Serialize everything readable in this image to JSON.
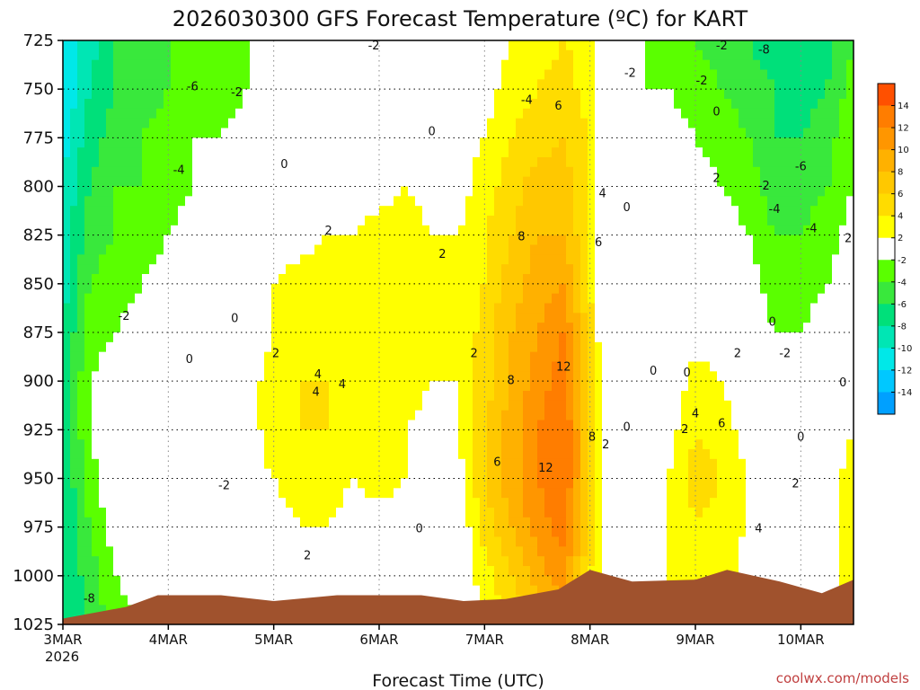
{
  "chart_data": {
    "type": "heatmap",
    "title": "2026030300 GFS Forecast Temperature (ºC) for KART",
    "xlabel": "Forecast Time (UTC)",
    "credit": "coolwx.com/models",
    "x_ticks": [
      "3MAR",
      "4MAR",
      "5MAR",
      "6MAR",
      "7MAR",
      "8MAR",
      "9MAR",
      "10MAR"
    ],
    "x_sub": "2026",
    "y_ticks": [
      725,
      750,
      775,
      800,
      825,
      850,
      875,
      900,
      925,
      950,
      975,
      1000,
      1025
    ],
    "y_axis": "pressure (hPa), inverted",
    "x_range_days": [
      0,
      7.5
    ],
    "y_range": [
      725,
      1025
    ],
    "grid": true,
    "colorbar": {
      "labels": [
        "14",
        "12",
        "10",
        "8",
        "6",
        "4",
        "2",
        "-2",
        "-4",
        "-6",
        "-8",
        "-10",
        "-12",
        "-14"
      ],
      "colors": [
        "#ff5000",
        "#ff7d00",
        "#ff9600",
        "#ffb100",
        "#ffc800",
        "#ffdc00",
        "#ffff00",
        "#ffffff",
        "#5aff00",
        "#39e83c",
        "#00e07a",
        "#00e6b4",
        "#00e8e8",
        "#00c8ff",
        "#00a0ff"
      ]
    },
    "terrain_color": "#a0522d",
    "columns": [
      {
        "x": 0.0,
        "levels": [
          -12,
          -12,
          -11,
          -10,
          -9,
          -9,
          -8,
          -8,
          -8,
          -8,
          -8,
          -8,
          -8
        ]
      },
      {
        "x": 0.25,
        "levels": [
          -9,
          -8,
          -7,
          -6,
          -5,
          -4,
          -3,
          -2,
          -2,
          -3,
          -4,
          -5,
          -6
        ]
      },
      {
        "x": 0.5,
        "levels": [
          -6,
          -6,
          -5,
          -4,
          -4,
          -3,
          -2,
          -1,
          0,
          0,
          -1,
          -2,
          -3
        ]
      },
      {
        "x": 0.75,
        "levels": [
          -5,
          -5,
          -4,
          -4,
          -3,
          -2,
          -1,
          0,
          1,
          1,
          0,
          -1,
          -2
        ]
      },
      {
        "x": 1.0,
        "levels": [
          -4,
          -4,
          -3,
          -3,
          -2,
          -1,
          0,
          0,
          1,
          1,
          0,
          -1,
          -1
        ]
      },
      {
        "x": 1.25,
        "levels": [
          -3,
          -3,
          -2,
          -2,
          -1,
          0,
          0,
          1,
          1,
          0,
          -2,
          -1,
          -1
        ]
      },
      {
        "x": 1.5,
        "levels": [
          -3,
          -3,
          -2,
          -1,
          -1,
          0,
          0,
          0,
          1,
          1,
          0,
          0,
          0
        ]
      },
      {
        "x": 1.75,
        "levels": [
          -2,
          -2,
          -1,
          0,
          0,
          0,
          0,
          1,
          1,
          1,
          0,
          0,
          0
        ]
      },
      {
        "x": 2.0,
        "levels": [
          -2,
          -1,
          -1,
          0,
          1,
          2,
          2,
          3,
          3,
          2,
          1,
          0,
          0
        ]
      },
      {
        "x": 2.25,
        "levels": [
          -1,
          -1,
          0,
          0,
          1,
          3,
          3,
          4,
          4,
          3,
          2,
          1,
          0
        ]
      },
      {
        "x": 2.5,
        "levels": [
          -1,
          -1,
          0,
          0,
          2,
          3,
          3,
          4,
          4,
          3,
          2,
          1,
          1
        ]
      },
      {
        "x": 2.75,
        "levels": [
          -1,
          0,
          0,
          1,
          2,
          3,
          3,
          3,
          3,
          2,
          1,
          0,
          1
        ]
      },
      {
        "x": 3.0,
        "levels": [
          -1,
          0,
          0,
          1,
          3,
          3,
          4,
          4,
          4,
          3,
          1,
          0,
          1
        ]
      },
      {
        "x": 3.25,
        "levels": [
          -1,
          0,
          0,
          2,
          3,
          3,
          3,
          3,
          2,
          2,
          1,
          0,
          1
        ]
      },
      {
        "x": 3.5,
        "levels": [
          -1,
          -1,
          0,
          1,
          2,
          2,
          2,
          2,
          1,
          1,
          0,
          -2,
          0
        ]
      },
      {
        "x": 3.75,
        "levels": [
          -1,
          0,
          1,
          1,
          2,
          2,
          2,
          2,
          2,
          1,
          0,
          0,
          1
        ]
      },
      {
        "x": 4.0,
        "levels": [
          0,
          1,
          2,
          3,
          4,
          4,
          5,
          5,
          6,
          6,
          5,
          3,
          2
        ]
      },
      {
        "x": 4.25,
        "levels": [
          2,
          3,
          4,
          5,
          6,
          7,
          8,
          8,
          9,
          9,
          8,
          6,
          4
        ]
      },
      {
        "x": 4.5,
        "levels": [
          3,
          4,
          5,
          7,
          8,
          9,
          10,
          11,
          12,
          12,
          11,
          9,
          6
        ]
      },
      {
        "x": 4.75,
        "levels": [
          4,
          5,
          6,
          7,
          8,
          10,
          12,
          13,
          14,
          14,
          13,
          11,
          8
        ]
      },
      {
        "x": 5.0,
        "levels": [
          3,
          3,
          4,
          4,
          4,
          4,
          5,
          5,
          6,
          6,
          5,
          4,
          3
        ]
      },
      {
        "x": 5.1,
        "levels": [
          -1,
          0,
          0,
          0,
          1,
          1,
          1,
          2,
          2,
          2,
          2,
          2,
          2
        ]
      },
      {
        "x": 5.25,
        "levels": [
          -2,
          -1,
          0,
          0,
          0,
          0,
          0,
          0,
          0,
          1,
          1,
          1,
          1
        ]
      },
      {
        "x": 5.5,
        "levels": [
          -2,
          -2,
          -1,
          -1,
          0,
          0,
          0,
          0,
          0,
          0,
          1,
          1,
          1
        ]
      },
      {
        "x": 5.75,
        "levels": [
          -3,
          -2,
          -1,
          0,
          0,
          0,
          -1,
          0,
          1,
          2,
          2,
          2,
          2
        ]
      },
      {
        "x": 6.0,
        "levels": [
          -4,
          -3,
          -2,
          -1,
          0,
          1,
          1,
          3,
          4,
          5,
          4,
          3,
          3
        ]
      },
      {
        "x": 6.25,
        "levels": [
          -5,
          -4,
          -3,
          -2,
          -1,
          0,
          1,
          2,
          3,
          4,
          3,
          3,
          3
        ]
      },
      {
        "x": 6.5,
        "levels": [
          -6,
          -5,
          -4,
          -3,
          -2,
          -1,
          0,
          0,
          1,
          2,
          2,
          1,
          1
        ]
      },
      {
        "x": 6.75,
        "levels": [
          -7,
          -6,
          -6,
          -5,
          -4,
          -3,
          -2,
          -1,
          0,
          1,
          1,
          1,
          1
        ]
      },
      {
        "x": 7.0,
        "levels": [
          -8,
          -7,
          -6,
          -5,
          -4,
          -3,
          -2,
          -1,
          0,
          1,
          1,
          1,
          1
        ]
      },
      {
        "x": 7.25,
        "levels": [
          -7,
          -6,
          -5,
          -4,
          -3,
          -2,
          -1,
          0,
          0,
          1,
          1,
          1,
          1
        ]
      },
      {
        "x": 7.5,
        "levels": [
          -4,
          -3,
          -2,
          -2,
          -1,
          0,
          0,
          1,
          2,
          3,
          3,
          3,
          3
        ]
      }
    ],
    "terrain": [
      {
        "x": 0.0,
        "p": 1022
      },
      {
        "x": 0.6,
        "p": 1016
      },
      {
        "x": 0.9,
        "p": 1010
      },
      {
        "x": 1.5,
        "p": 1010
      },
      {
        "x": 2.0,
        "p": 1013
      },
      {
        "x": 2.6,
        "p": 1010
      },
      {
        "x": 3.4,
        "p": 1010
      },
      {
        "x": 3.8,
        "p": 1013
      },
      {
        "x": 4.2,
        "p": 1012
      },
      {
        "x": 4.7,
        "p": 1007
      },
      {
        "x": 5.0,
        "p": 997
      },
      {
        "x": 5.4,
        "p": 1003
      },
      {
        "x": 6.0,
        "p": 1002
      },
      {
        "x": 6.3,
        "p": 997
      },
      {
        "x": 6.8,
        "p": 1003
      },
      {
        "x": 7.2,
        "p": 1009
      },
      {
        "x": 7.5,
        "p": 1002
      }
    ],
    "contour_labels": [
      {
        "text": "-2",
        "x": 2.95,
        "p": 728
      },
      {
        "text": "-6",
        "x": 1.23,
        "p": 749
      },
      {
        "text": "-2",
        "x": 1.65,
        "p": 752
      },
      {
        "text": "-4",
        "x": 1.1,
        "p": 792
      },
      {
        "text": "0",
        "x": 2.1,
        "p": 789
      },
      {
        "text": "0",
        "x": 3.5,
        "p": 772
      },
      {
        "text": "2",
        "x": 2.52,
        "p": 823
      },
      {
        "text": "2",
        "x": 3.6,
        "p": 835
      },
      {
        "text": "-2",
        "x": 0.58,
        "p": 867
      },
      {
        "text": "0",
        "x": 1.2,
        "p": 889
      },
      {
        "text": "0",
        "x": 1.63,
        "p": 868
      },
      {
        "text": "2",
        "x": 2.02,
        "p": 886
      },
      {
        "text": "4",
        "x": 2.42,
        "p": 897
      },
      {
        "text": "4",
        "x": 2.4,
        "p": 906
      },
      {
        "text": "4",
        "x": 2.65,
        "p": 902
      },
      {
        "text": "-2",
        "x": 1.53,
        "p": 954
      },
      {
        "text": "0",
        "x": 3.38,
        "p": 976
      },
      {
        "text": "2",
        "x": 2.32,
        "p": 990
      },
      {
        "text": "-2",
        "x": 6.25,
        "p": 728
      },
      {
        "text": "-8",
        "x": 6.65,
        "p": 730
      },
      {
        "text": "-2",
        "x": 5.38,
        "p": 742
      },
      {
        "text": "-2",
        "x": 6.06,
        "p": 746
      },
      {
        "text": "-4",
        "x": 4.4,
        "p": 756
      },
      {
        "text": "6",
        "x": 4.7,
        "p": 759
      },
      {
        "text": "0",
        "x": 6.2,
        "p": 762
      },
      {
        "text": "-6",
        "x": 7.0,
        "p": 790
      },
      {
        "text": "2",
        "x": 6.2,
        "p": 796
      },
      {
        "text": "-2",
        "x": 6.65,
        "p": 800
      },
      {
        "text": "4",
        "x": 5.12,
        "p": 804
      },
      {
        "text": "0",
        "x": 5.35,
        "p": 811
      },
      {
        "text": "-4",
        "x": 6.75,
        "p": 812
      },
      {
        "text": "-4",
        "x": 7.1,
        "p": 822
      },
      {
        "text": "2",
        "x": 7.45,
        "p": 827
      },
      {
        "text": "8",
        "x": 4.35,
        "p": 826
      },
      {
        "text": "6",
        "x": 5.08,
        "p": 829
      },
      {
        "text": "0",
        "x": 6.73,
        "p": 870
      },
      {
        "text": "2",
        "x": 3.9,
        "p": 886
      },
      {
        "text": "2",
        "x": 6.4,
        "p": 886
      },
      {
        "text": "-2",
        "x": 6.85,
        "p": 886
      },
      {
        "text": "12",
        "x": 4.75,
        "p": 893
      },
      {
        "text": "0",
        "x": 5.6,
        "p": 895
      },
      {
        "text": "0",
        "x": 5.92,
        "p": 896
      },
      {
        "text": "8",
        "x": 4.25,
        "p": 900
      },
      {
        "text": "0",
        "x": 7.4,
        "p": 901
      },
      {
        "text": "4",
        "x": 6.0,
        "p": 917
      },
      {
        "text": "6",
        "x": 6.25,
        "p": 922
      },
      {
        "text": "2",
        "x": 5.9,
        "p": 925
      },
      {
        "text": "0",
        "x": 5.35,
        "p": 924
      },
      {
        "text": "8",
        "x": 5.02,
        "p": 929
      },
      {
        "text": "2",
        "x": 5.15,
        "p": 933
      },
      {
        "text": "0",
        "x": 7.0,
        "p": 929
      },
      {
        "text": "6",
        "x": 4.12,
        "p": 942
      },
      {
        "text": "12",
        "x": 4.58,
        "p": 945
      },
      {
        "text": "2",
        "x": 6.95,
        "p": 953
      },
      {
        "text": "4",
        "x": 6.6,
        "p": 976
      },
      {
        "text": "-8",
        "x": 0.25,
        "p": 1012
      }
    ]
  }
}
